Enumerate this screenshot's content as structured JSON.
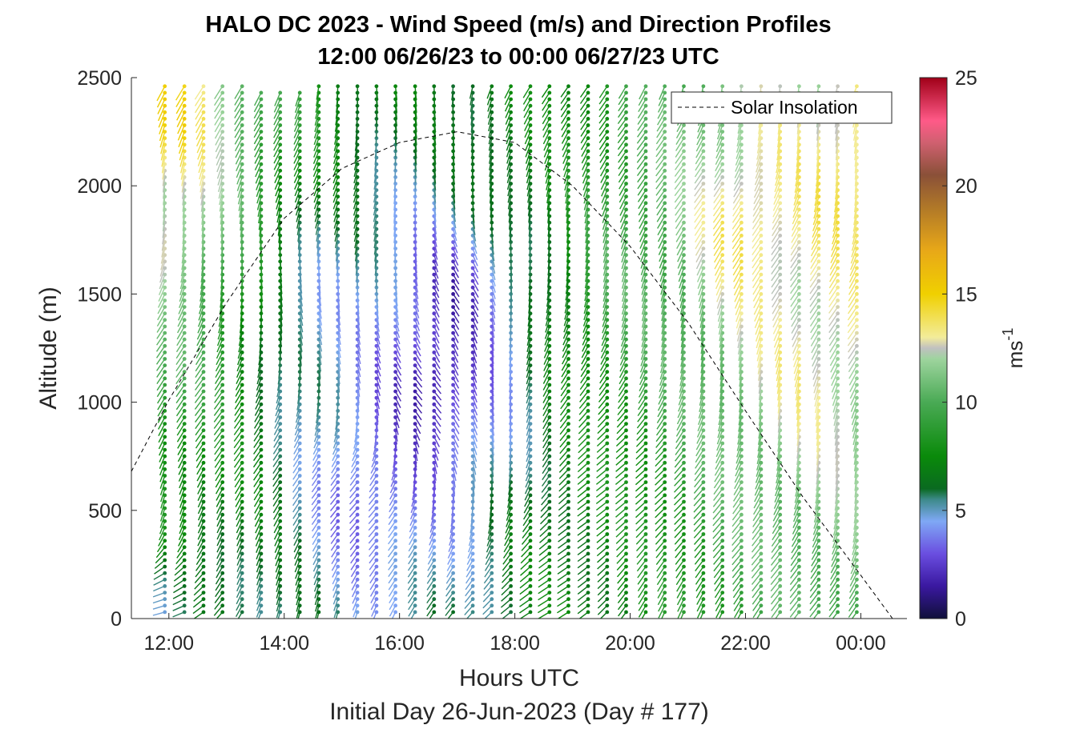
{
  "chart_data": {
    "type": "wind-barb-profile",
    "title": "HALO DC 2023 - Wind Speed (m/s) and Direction Profiles",
    "subtitle": "12:00 06/26/23 to 00:00 06/27/23  UTC",
    "xlabel": "Hours UTC",
    "xlabel2": "Initial Day 26-Jun-2023 (Day # 177)",
    "ylabel": "Altitude (m)",
    "xlim_hours": [
      11.35,
      24.8
    ],
    "ylim": [
      0,
      2500
    ],
    "x_ticks": [
      {
        "hour": 12,
        "label": "12:00"
      },
      {
        "hour": 14,
        "label": "14:00"
      },
      {
        "hour": 16,
        "label": "16:00"
      },
      {
        "hour": 18,
        "label": "18:00"
      },
      {
        "hour": 20,
        "label": "20:00"
      },
      {
        "hour": 22,
        "label": "22:00"
      },
      {
        "hour": 24,
        "label": "00:00"
      }
    ],
    "y_ticks": [
      0,
      500,
      1000,
      1500,
      2000,
      2500
    ],
    "colorbar": {
      "label": "ms",
      "label_exponent": "-1",
      "range": [
        0,
        25
      ],
      "ticks": [
        0,
        5,
        10,
        15,
        20,
        25
      ],
      "stops": [
        {
          "v": 0,
          "c": "#10103a"
        },
        {
          "v": 1.5,
          "c": "#3a18a0"
        },
        {
          "v": 3,
          "c": "#6a4ee0"
        },
        {
          "v": 4.5,
          "c": "#7fa8f5"
        },
        {
          "v": 5.5,
          "c": "#3d8a8a"
        },
        {
          "v": 6,
          "c": "#0a6a20"
        },
        {
          "v": 7.5,
          "c": "#0a8a0a"
        },
        {
          "v": 10,
          "c": "#4aaa55"
        },
        {
          "v": 12,
          "c": "#9ed49e"
        },
        {
          "v": 12.5,
          "c": "#c0c0c0"
        },
        {
          "v": 13,
          "c": "#f3ec9a"
        },
        {
          "v": 15,
          "c": "#f0d000"
        },
        {
          "v": 17,
          "c": "#e8a818"
        },
        {
          "v": 19,
          "c": "#b07828"
        },
        {
          "v": 20.5,
          "c": "#8a5038"
        },
        {
          "v": 22,
          "c": "#d06070"
        },
        {
          "v": 23,
          "c": "#ff5a88"
        },
        {
          "v": 25,
          "c": "#a00018"
        }
      ]
    },
    "legend": {
      "label": "Solar Insolation",
      "placement": "top-right",
      "style": "dashed"
    },
    "solar_insolation_curve": [
      {
        "hour": 11.35,
        "alt": 680
      },
      {
        "hour": 12.0,
        "alt": 1010
      },
      {
        "hour": 13.0,
        "alt": 1460
      },
      {
        "hour": 14.0,
        "alt": 1850
      },
      {
        "hour": 15.0,
        "alt": 2080
      },
      {
        "hour": 16.0,
        "alt": 2200
      },
      {
        "hour": 17.0,
        "alt": 2250
      },
      {
        "hour": 18.0,
        "alt": 2200
      },
      {
        "hour": 19.0,
        "alt": 2000
      },
      {
        "hour": 20.0,
        "alt": 1720
      },
      {
        "hour": 21.0,
        "alt": 1370
      },
      {
        "hour": 22.0,
        "alt": 960
      },
      {
        "hour": 23.0,
        "alt": 560
      },
      {
        "hour": 24.0,
        "alt": 200
      },
      {
        "hour": 24.55,
        "alt": 0
      },
      {
        "hour": 24.75,
        "alt": 0
      }
    ],
    "profile_times_hours": [
      11.93,
      12.27,
      12.6,
      12.93,
      13.27,
      13.6,
      13.93,
      14.27,
      14.6,
      14.93,
      15.27,
      15.6,
      15.93,
      16.27,
      16.6,
      16.93,
      17.27,
      17.6,
      17.93,
      18.27,
      18.6,
      18.93,
      19.27,
      19.6,
      19.93,
      20.27,
      20.6,
      20.93,
      21.27,
      21.6,
      21.93,
      22.27,
      22.6,
      22.93,
      23.27,
      23.6,
      23.93
    ],
    "altitude_step_m": 30,
    "speed_field_ms": [
      {
        "hour": 12.0,
        "alt": 100,
        "speed": 5.0,
        "dir_deg": 200
      },
      {
        "hour": 12.0,
        "alt": 600,
        "speed": 8.0,
        "dir_deg": 240
      },
      {
        "hour": 12.0,
        "alt": 1200,
        "speed": 10.0,
        "dir_deg": 250
      },
      {
        "hour": 12.0,
        "alt": 1800,
        "speed": 13.0,
        "dir_deg": 250
      },
      {
        "hour": 12.0,
        "alt": 2300,
        "speed": 15.0,
        "dir_deg": 250
      },
      {
        "hour": 14.5,
        "alt": 1400,
        "speed": 4.5,
        "dir_deg": 270
      },
      {
        "hour": 15.5,
        "alt": 600,
        "speed": 3.0,
        "dir_deg": 240
      },
      {
        "hour": 16.5,
        "alt": 1100,
        "speed": 1.0,
        "dir_deg": 300
      },
      {
        "hour": 17.0,
        "alt": 1500,
        "speed": 2.0,
        "dir_deg": 320
      },
      {
        "hour": 18.0,
        "alt": 2100,
        "speed": 7.0,
        "dir_deg": 240
      },
      {
        "hour": 19.0,
        "alt": 300,
        "speed": 7.0,
        "dir_deg": 200
      },
      {
        "hour": 20.0,
        "alt": 1600,
        "speed": 10.0,
        "dir_deg": 240
      },
      {
        "hour": 22.0,
        "alt": 1800,
        "speed": 14.0,
        "dir_deg": 250
      },
      {
        "hour": 23.0,
        "alt": 1200,
        "speed": 13.0,
        "dir_deg": 250
      },
      {
        "hour": 23.8,
        "alt": 2000,
        "speed": 14.0,
        "dir_deg": 250
      }
    ]
  }
}
